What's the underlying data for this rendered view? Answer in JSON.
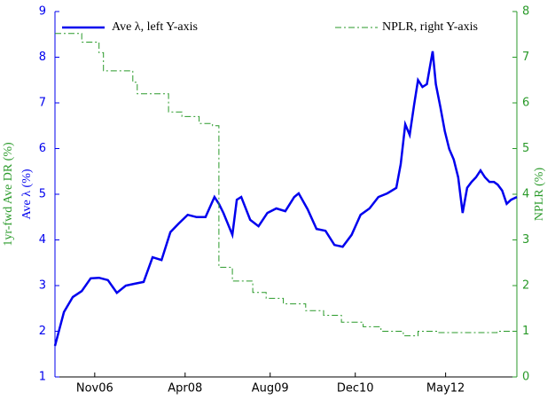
{
  "chart_data": {
    "type": "line",
    "ylabel": "Ave λ (%)",
    "ylabel_extra": "1yr-fwd Ave DR (%)",
    "y2label": "NPLR (%)",
    "xlim": [
      2006.21,
      2013.45
    ],
    "xticks": [
      {
        "value": 2006.833,
        "label": "Nov06"
      },
      {
        "value": 2008.25,
        "label": "Apr08"
      },
      {
        "value": 2009.583,
        "label": "Aug09"
      },
      {
        "value": 2010.917,
        "label": "Dec10"
      },
      {
        "value": 2012.333,
        "label": "May12"
      }
    ],
    "ylim": [
      1,
      9
    ],
    "yticks": [
      1,
      2,
      3,
      4,
      5,
      6,
      7,
      8,
      9
    ],
    "y2lim": [
      0,
      8
    ],
    "y2ticks": [
      0,
      1,
      2,
      3,
      4,
      5,
      6,
      7,
      8
    ],
    "grid": false,
    "series": [
      {
        "name": "Ave λ, left Y-axis",
        "color": "#0000ee",
        "axis": "y",
        "style": "solid",
        "x": [
          2006.21,
          2006.35,
          2006.49,
          2006.63,
          2006.77,
          2006.9,
          2007.04,
          2007.18,
          2007.32,
          2007.46,
          2007.6,
          2007.74,
          2007.88,
          2008.02,
          2008.15,
          2008.29,
          2008.43,
          2008.57,
          2008.71,
          2008.78,
          2008.85,
          2008.99,
          2009.06,
          2009.13,
          2009.27,
          2009.4,
          2009.54,
          2009.68,
          2009.82,
          2009.96,
          2010.03,
          2010.17,
          2010.31,
          2010.45,
          2010.59,
          2010.72,
          2010.86,
          2011.0,
          2011.14,
          2011.28,
          2011.42,
          2011.56,
          2011.63,
          2011.7,
          2011.77,
          2011.84,
          2011.9,
          2011.97,
          2012.04,
          2012.13,
          2012.18,
          2012.25,
          2012.32,
          2012.39,
          2012.46,
          2012.53,
          2012.6,
          2012.67,
          2012.74,
          2012.81,
          2012.88,
          2012.95,
          2013.02,
          2013.09,
          2013.15,
          2013.22,
          2013.29,
          2013.36,
          2013.45
        ],
        "values": [
          1.68,
          2.42,
          2.75,
          2.88,
          3.16,
          3.17,
          3.12,
          2.84,
          3.0,
          3.04,
          3.08,
          3.62,
          3.56,
          4.17,
          4.36,
          4.55,
          4.5,
          4.5,
          4.94,
          4.79,
          4.59,
          4.11,
          4.88,
          4.94,
          4.44,
          4.3,
          4.59,
          4.69,
          4.63,
          4.94,
          5.02,
          4.67,
          4.24,
          4.2,
          3.89,
          3.85,
          4.11,
          4.55,
          4.69,
          4.94,
          5.02,
          5.14,
          5.66,
          6.53,
          6.3,
          6.96,
          7.5,
          7.35,
          7.41,
          8.13,
          7.41,
          6.92,
          6.38,
          5.99,
          5.76,
          5.37,
          4.59,
          5.14,
          5.27,
          5.37,
          5.52,
          5.37,
          5.27,
          5.27,
          5.21,
          5.08,
          4.79,
          4.88,
          4.94
        ]
      },
      {
        "name": "NPLR, right Y-axis",
        "color": "#2a9a2a",
        "axis": "y2",
        "style": "dashdot",
        "step": "post",
        "x": [
          2006.21,
          2006.63,
          2006.9,
          2006.97,
          2007.43,
          2007.5,
          2007.99,
          2008.2,
          2008.47,
          2008.68,
          2008.78,
          2008.99,
          2009.31,
          2009.52,
          2009.79,
          2010.14,
          2010.42,
          2010.7,
          2011.04,
          2011.32,
          2011.67,
          2011.9,
          2012.22,
          2012.93,
          2013.14,
          2013.45
        ],
        "values": [
          7.52,
          7.33,
          7.1,
          6.7,
          6.45,
          6.2,
          5.8,
          5.7,
          5.55,
          5.5,
          2.4,
          2.1,
          1.85,
          1.72,
          1.6,
          1.45,
          1.35,
          1.2,
          1.1,
          1.0,
          0.9,
          1.0,
          0.97,
          0.97,
          1.0,
          1.0
        ]
      }
    ]
  }
}
